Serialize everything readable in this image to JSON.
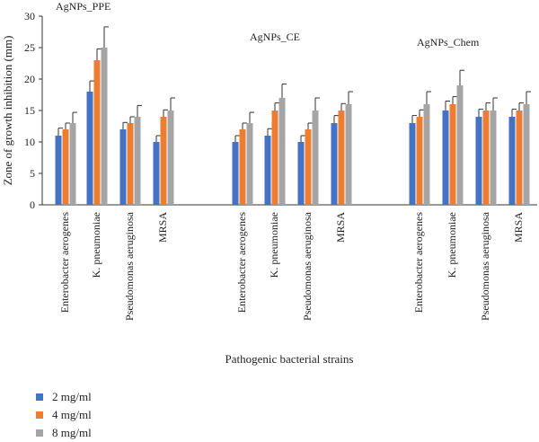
{
  "chart_data": {
    "type": "bar",
    "xlabel": "Pathogenic bacterial strains",
    "ylabel": "Zone of growth inhibition (mm)",
    "ylim": [
      0,
      30
    ],
    "yticks": [
      0,
      5,
      10,
      15,
      20,
      25,
      30
    ],
    "grid": false,
    "legend_position": "bottom-left",
    "groups": [
      {
        "name": "AgNPs_PPE",
        "categories": [
          "Enterobacter aerogenes",
          "K. pneumoniae",
          "Pseudomonas aeruginosa",
          "MRSA"
        ],
        "series": [
          {
            "name": "2 mg/ml",
            "values": [
              11,
              18,
              12,
              10
            ],
            "errors": [
              1.2,
              1.7,
              1.1,
              1.0
            ]
          },
          {
            "name": "4 mg/ml",
            "values": [
              12,
              23,
              13,
              14
            ],
            "errors": [
              1.0,
              1.8,
              1.0,
              1.1
            ]
          },
          {
            "name": "8 mg/ml",
            "values": [
              13,
              25,
              14,
              15
            ],
            "errors": [
              1.7,
              3.3,
              1.8,
              2.0
            ]
          }
        ]
      },
      {
        "name": "AgNPs_CE",
        "categories": [
          "Enterobacter aerogenes",
          "K. pneumoniae",
          "Pseudomonas aeruginosa",
          "MRSA"
        ],
        "series": [
          {
            "name": "2 mg/ml",
            "values": [
              10,
              11,
              10,
              13
            ],
            "errors": [
              1.0,
              1.1,
              1.0,
              1.2
            ]
          },
          {
            "name": "4 mg/ml",
            "values": [
              12,
              15,
              12,
              15
            ],
            "errors": [
              1.0,
              1.2,
              1.0,
              1.1
            ]
          },
          {
            "name": "8 mg/ml",
            "values": [
              13,
              17,
              15,
              16
            ],
            "errors": [
              1.7,
              2.2,
              2.0,
              2.0
            ]
          }
        ]
      },
      {
        "name": "AgNPs_Chem",
        "categories": [
          "Enterobacter aerogenes",
          "K. pneumoniae",
          "Pseudomonas aeruginosa",
          "MRSA"
        ],
        "series": [
          {
            "name": "2 mg/ml",
            "values": [
              13,
              15,
              14,
              14
            ],
            "errors": [
              1.2,
              1.5,
              1.2,
              1.2
            ]
          },
          {
            "name": "4 mg/ml",
            "values": [
              14,
              16,
              15,
              15
            ],
            "errors": [
              1.1,
              1.2,
              1.2,
              1.2
            ]
          },
          {
            "name": "8 mg/ml",
            "values": [
              16,
              19,
              15,
              16
            ],
            "errors": [
              2.0,
              2.4,
              2.0,
              2.0
            ]
          }
        ]
      }
    ],
    "series_colors": [
      "#4472c4",
      "#ed7d31",
      "#a5a5a5"
    ]
  }
}
